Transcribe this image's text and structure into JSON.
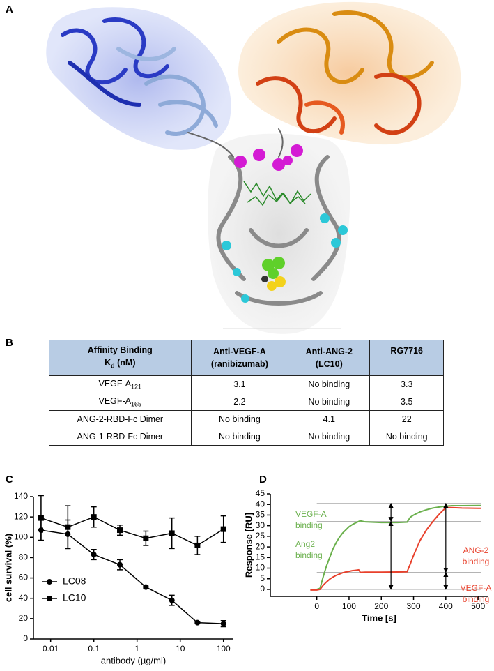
{
  "panel_labels": [
    "A",
    "B",
    "C",
    "D"
  ],
  "table": {
    "header": [
      {
        "line1": "Affinity Binding",
        "line2": "K",
        "line2_sub": "d",
        "line2_tail": "(nM)"
      },
      {
        "line1": "Anti-VEGF-A",
        "line2": "(ranibizumab)"
      },
      {
        "line1": "Anti-ANG-2",
        "line2": "(LC10)"
      },
      {
        "line1": "RG7716"
      }
    ],
    "rows": [
      {
        "label": "VEGF-A",
        "label_sub": "121",
        "cells": [
          3.1,
          "No binding",
          3.3
        ]
      },
      {
        "label": "VEGF-A",
        "label_sub": "165",
        "cells": [
          2.2,
          "No binding",
          3.5
        ]
      },
      {
        "label": "ANG-2-RBD-Fc Dimer",
        "cells": [
          "No binding",
          4.1,
          22
        ]
      },
      {
        "label": "ANG-1-RBD-Fc Dimer",
        "cells": [
          "No binding",
          "No binding",
          "No binding"
        ]
      }
    ]
  },
  "chart_data": [
    {
      "type": "line",
      "xlabel": "antibody (µg/ml)",
      "ylabel": "cell survival (%)",
      "xscale": "log",
      "x": [
        0.006,
        0.025,
        0.1,
        0.4,
        1.6,
        6.4,
        25,
        100
      ],
      "series": [
        {
          "name": "LC08",
          "color": "#000000",
          "marker": "circle",
          "values": [
            107,
            103,
            83,
            73,
            51,
            38,
            16,
            15
          ],
          "errors": [
            10,
            14,
            5,
            5,
            1,
            5,
            1,
            3
          ]
        },
        {
          "name": "LC10",
          "color": "#000000",
          "marker": "square",
          "values": [
            119,
            110,
            120,
            107,
            99,
            104,
            92,
            108
          ],
          "errors": [
            22,
            21,
            10,
            5,
            7,
            15,
            9,
            13
          ]
        }
      ],
      "xlim": [
        0.004,
        170
      ],
      "ylim": [
        0,
        140
      ],
      "xticks": [
        0.01,
        0.1,
        1,
        10,
        100
      ],
      "yticks": [
        0,
        20,
        40,
        60,
        80,
        100,
        120,
        140
      ],
      "legend": "lower left"
    },
    {
      "type": "line",
      "xlabel": "Time [s]",
      "ylabel": "Response [RU]",
      "xscale": "linear",
      "x": [
        -20,
        0,
        10,
        20,
        30,
        40,
        50,
        60,
        70,
        80,
        90,
        100,
        110,
        120,
        130,
        135,
        150,
        200,
        250,
        280,
        290,
        300,
        320,
        340,
        360,
        380,
        400,
        420,
        450,
        500,
        510
      ],
      "series": [
        {
          "color": "#6ab04c",
          "values": [
            0,
            0,
            0.5,
            6,
            11,
            15,
            19,
            22,
            24.5,
            26.5,
            28,
            29.5,
            30.5,
            31.3,
            32,
            32.3,
            31.8,
            31.5,
            31.5,
            31.7,
            34,
            35,
            36.5,
            37.5,
            38.3,
            38.8,
            39.2,
            39.4,
            39.4,
            39.5,
            39.5
          ]
        },
        {
          "color": "#e8412c",
          "values": [
            -0.3,
            -0.3,
            0,
            2,
            3.5,
            4.8,
            5.8,
            6.6,
            7.2,
            7.8,
            8.2,
            8.5,
            8.8,
            9,
            9.2,
            8,
            8.1,
            8.1,
            8.2,
            8.3,
            12,
            16,
            23,
            28,
            32,
            35.5,
            38.5,
            38.5,
            38.3,
            38.2,
            38.2
          ]
        }
      ],
      "xlim": [
        -144,
        530
      ],
      "ylim": [
        -3.3,
        45
      ],
      "xticks": [
        0,
        100,
        200,
        300,
        400,
        500
      ],
      "yticks": [
        0,
        5,
        10,
        15,
        20,
        25,
        30,
        35,
        40,
        45
      ],
      "reference_lines": [
        0,
        8,
        32,
        40.5
      ],
      "arrows": [
        {
          "x": 230,
          "from": 0,
          "to": 32
        },
        {
          "x": 230,
          "from": 32,
          "to": 40.5
        },
        {
          "x": 400,
          "from": 0,
          "to": 8
        },
        {
          "x": 400,
          "from": 8,
          "to": 40.5
        }
      ],
      "annotations": [
        {
          "lines": [
            "VEGF-A",
            "binding"
          ],
          "color": "#6ab04c"
        },
        {
          "lines": [
            "Ang2",
            "binding"
          ],
          "color": "#6ab04c"
        },
        {
          "lines": [
            "ANG-2",
            "binding"
          ],
          "color": "#e8412c"
        },
        {
          "lines": [
            "VEGF-A",
            "binding"
          ],
          "color": "#e8412c"
        }
      ],
      "legend": false
    }
  ]
}
